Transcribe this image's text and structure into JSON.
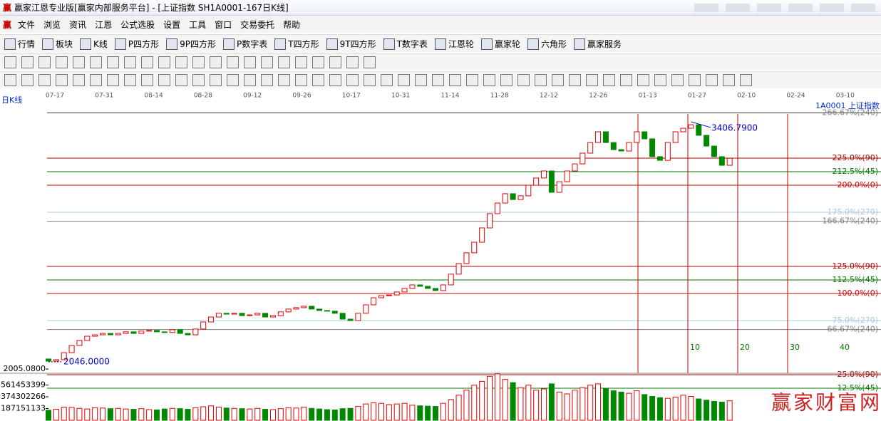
{
  "window": {
    "title": "赢家江恩专业版[赢家内部服务平台] - [上证指数  SH1A0001-167日K线]"
  },
  "menu": [
    "文件",
    "浏览",
    "资讯",
    "江恩",
    "公式选股",
    "设置",
    "工具",
    "窗口",
    "交易委托",
    "帮助"
  ],
  "toolbar": [
    "行情",
    "板块",
    "K线",
    "P四方形",
    "9P四方形",
    "P数字表",
    "T四方形",
    "9T四方形",
    "T数字表",
    "江恩轮",
    "赢家轮",
    "六角形",
    "赢家服务"
  ],
  "watermark": "赢家财富网",
  "chart_data": {
    "type": "candlestick",
    "label": "日K线",
    "symbol": "1A0001  上证指数",
    "dates": [
      "07-17",
      "07-31",
      "08-14",
      "08-28",
      "09-12",
      "09-26",
      "10-17",
      "10-31",
      "11-14",
      "11-28",
      "12-12",
      "12-26",
      "01-13",
      "01-27",
      "02-10",
      "02-24",
      "03-10"
    ],
    "up_color": "#e00000",
    "down_color": "#008800",
    "open": [
      2062,
      2050,
      2058,
      2098,
      2139,
      2167,
      2191,
      2199,
      2207,
      2199,
      2207,
      2216,
      2207,
      2220,
      2224,
      2216,
      2212,
      2228,
      2207,
      2199,
      2232,
      2272,
      2300,
      2321,
      2316,
      2321,
      2308,
      2312,
      2321,
      2300,
      2308,
      2329,
      2345,
      2353,
      2361,
      2345,
      2337,
      2333,
      2321,
      2288,
      2280,
      2321,
      2369,
      2409,
      2421,
      2425,
      2442,
      2462,
      2482,
      2474,
      2462,
      2450,
      2482,
      2543,
      2603,
      2664,
      2724,
      2805,
      2886,
      2946,
      2999,
      2966,
      2987,
      3047,
      3088,
      3128,
      3007,
      3067,
      3128,
      3168,
      3229,
      3289,
      3350,
      3289,
      3249,
      3241,
      3289,
      3350,
      3310,
      3209,
      3188,
      3289,
      3350,
      3370,
      3390,
      3330,
      3269,
      3209,
      3160
    ],
    "close": [
      2050,
      2058,
      2098,
      2139,
      2167,
      2191,
      2199,
      2207,
      2199,
      2207,
      2216,
      2207,
      2220,
      2224,
      2216,
      2212,
      2228,
      2207,
      2199,
      2232,
      2272,
      2300,
      2321,
      2316,
      2321,
      2308,
      2312,
      2321,
      2300,
      2308,
      2329,
      2345,
      2353,
      2361,
      2345,
      2337,
      2333,
      2321,
      2288,
      2280,
      2321,
      2369,
      2409,
      2421,
      2425,
      2442,
      2462,
      2482,
      2474,
      2462,
      2450,
      2482,
      2543,
      2603,
      2664,
      2724,
      2805,
      2886,
      2946,
      2999,
      2966,
      2987,
      3047,
      3088,
      3128,
      3007,
      3067,
      3128,
      3168,
      3229,
      3289,
      3350,
      3289,
      3249,
      3241,
      3289,
      3350,
      3310,
      3209,
      3188,
      3289,
      3350,
      3370,
      3390,
      3330,
      3269,
      3209,
      3160,
      3200
    ],
    "volume": [
      160000000,
      175000000,
      210000000,
      205000000,
      190000000,
      180000000,
      200000000,
      195000000,
      185000000,
      190000000,
      180000000,
      175000000,
      185000000,
      170000000,
      165000000,
      180000000,
      190000000,
      185000000,
      175000000,
      200000000,
      215000000,
      230000000,
      210000000,
      195000000,
      190000000,
      185000000,
      180000000,
      190000000,
      175000000,
      170000000,
      185000000,
      200000000,
      195000000,
      210000000,
      190000000,
      180000000,
      170000000,
      165000000,
      185000000,
      190000000,
      220000000,
      260000000,
      280000000,
      270000000,
      250000000,
      260000000,
      270000000,
      240000000,
      230000000,
      225000000,
      220000000,
      270000000,
      330000000,
      400000000,
      480000000,
      560000000,
      620000000,
      700000000,
      740000000,
      650000000,
      600000000,
      520000000,
      560000000,
      480000000,
      500000000,
      580000000,
      450000000,
      420000000,
      480000000,
      520000000,
      560000000,
      580000000,
      500000000,
      470000000,
      450000000,
      430000000,
      470000000,
      410000000,
      380000000,
      360000000,
      350000000,
      370000000,
      400000000,
      380000000,
      340000000,
      320000000,
      300000000,
      290000000,
      310000000
    ],
    "ylim": [
      1977,
      3451
    ],
    "yticks": [
      {
        "value": 2005.08,
        "label": "2005.0800"
      }
    ],
    "volume_ylim": [
      0,
      748604532
    ],
    "volume_yticks": [
      187151133,
      374302266,
      561453399
    ],
    "annotations": [
      {
        "value": 3406.79,
        "label": "3406.7900"
      },
      {
        "value": 2046,
        "label": "2046.0000"
      }
    ],
    "levels": [
      {
        "value": 266.67,
        "label": "266.67%(240)",
        "color": "#808080"
      },
      {
        "value": 225.0,
        "label": "225.0%(90)",
        "color": "#b00000"
      },
      {
        "value": 212.5,
        "label": "212.5%(45)",
        "color": "#007700"
      },
      {
        "value": 200.0,
        "label": "200.0%(0)",
        "color": "#d00000"
      },
      {
        "value": 175.0,
        "label": "175.0%(270)",
        "color": "#a8c8e0"
      },
      {
        "value": 166.67,
        "label": "166.67%(240)",
        "color": "#808080"
      },
      {
        "value": 125.0,
        "label": "125.0%(90)",
        "color": "#b00000"
      },
      {
        "value": 112.5,
        "label": "112.5%(45)",
        "color": "#007700"
      },
      {
        "value": 100.0,
        "label": "100.0%(0)",
        "color": "#d00000"
      },
      {
        "value": 75.0,
        "label": "75.0%(270)",
        "color": "#a8c8e0"
      },
      {
        "value": 66.67,
        "label": "66.67%(240)",
        "color": "#808080"
      },
      {
        "value": 25.0,
        "label": "25.0%(90)",
        "color": "#b00000"
      },
      {
        "value": 12.5,
        "label": "12.5%(45)",
        "color": "#007700"
      }
    ],
    "cycle_labels": [
      10,
      20,
      30,
      40
    ]
  }
}
